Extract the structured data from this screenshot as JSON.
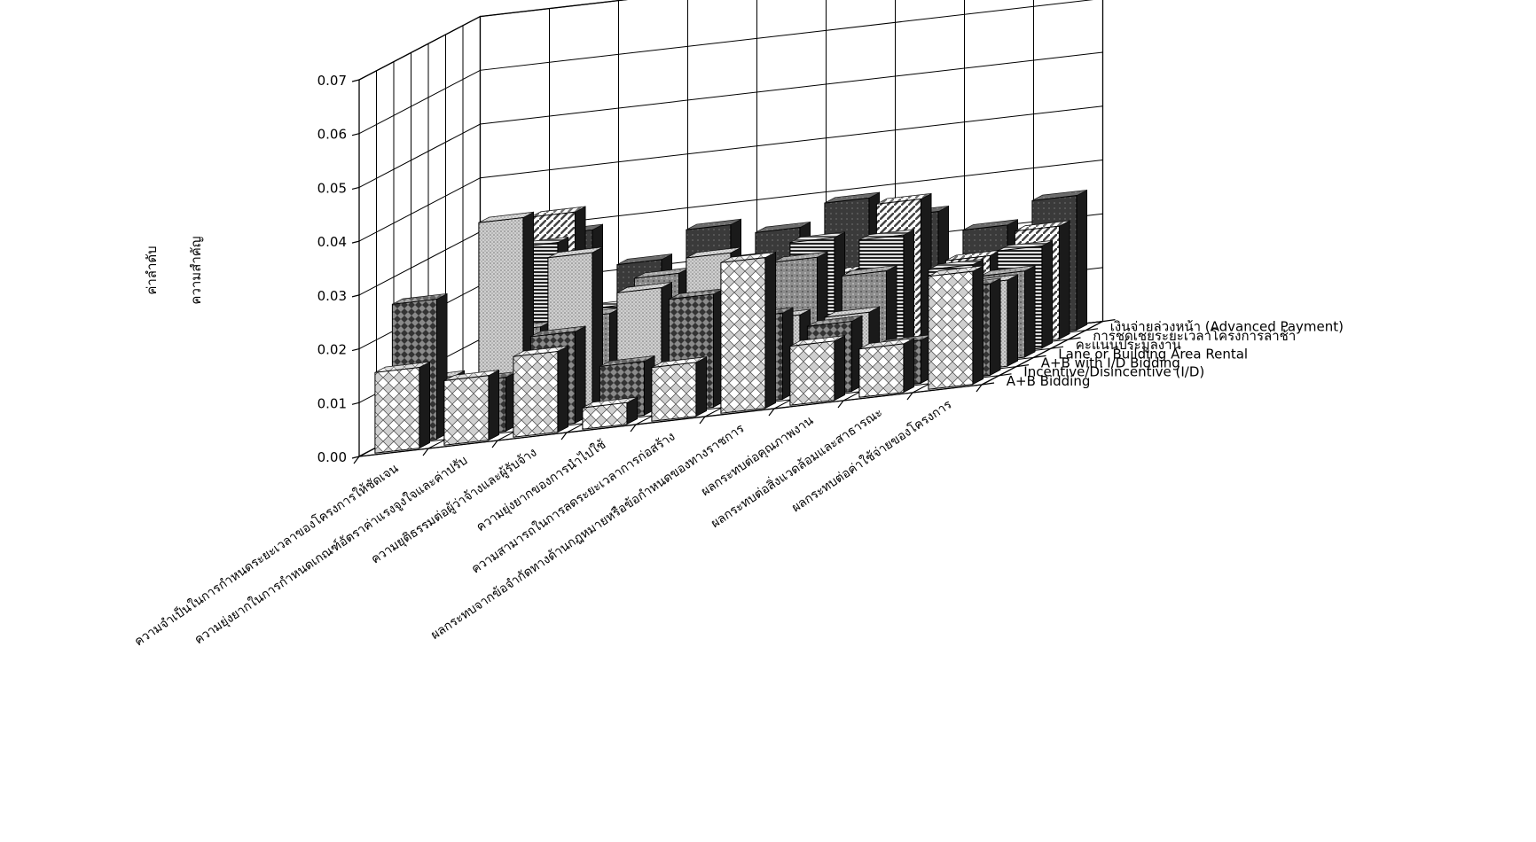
{
  "chart_data": {
    "type": "bar",
    "projection": "3d",
    "title": "",
    "ylabel": [
      "ค่าลำดับ",
      "ความสำคัญ"
    ],
    "ylim": [
      0,
      0.07
    ],
    "yticks": [
      "0.00",
      "0.01",
      "0.02",
      "0.03",
      "0.04",
      "0.05",
      "0.06",
      "0.07"
    ],
    "grid": true,
    "legend": "series labels along the right depth axis",
    "categories": [
      "ความจำเป็นในการกำหนดระยะเวลาของโครงการให้ชัดเจน",
      "ความยุ่งยากในการกำหนดเกณฑ์อัตราค่าแรงจูงใจและค่าปรับ",
      "ความยุติธรรมต่อผู้ว่าจ้างและผู้รับจ้าง",
      "ความยุ่งยากของการนำไปใช้",
      "ความสามารถในการลดระยะเวลาการก่อสร้าง",
      "ผลกระทบจากข้อจำกัดทางด้านกฎหมายหรือข้อกำหนดของทางราชการ",
      "ผลกระทบต่อคุณภาพงาน",
      "ผลกระทบต่อสิ่งแวดล้อมและสาธารณะ",
      "ผลกระทบต่อค่าใช้จ่ายของโครงการ"
    ],
    "series": [
      {
        "name": "A+B Bidding",
        "values": [
          0.015,
          0.012,
          0.015,
          0.004,
          0.01,
          0.028,
          0.011,
          0.009,
          0.021
        ]
      },
      {
        "name": "Incentive/Disincentive (I/D)",
        "values": [
          0.026,
          0.01,
          0.017,
          0.01,
          0.021,
          0.016,
          0.013,
          0.008,
          0.017
        ]
      },
      {
        "name": "A+B with I/D Bidding",
        "values": [
          0.01,
          0.038,
          0.03,
          0.022,
          0.027,
          0.014,
          0.013,
          0.002,
          0.016
        ]
      },
      {
        "name": "Lane or Building Area Rental",
        "values": [
          0.006,
          0.016,
          0.017,
          0.023,
          0.024,
          0.023,
          0.019,
          0.001,
          0.016
        ]
      },
      {
        "name": "คะแนนประมูลงาน",
        "values": [
          0.003,
          0.03,
          0.017,
          0.019,
          0.019,
          0.025,
          0.024,
          0.017,
          0.019
        ]
      },
      {
        "name": "การชดเชยระยะเวลาโครงการล่าช้า",
        "values": [
          0.003,
          0.034,
          0.015,
          0.015,
          0.015,
          0.017,
          0.029,
          0.017,
          0.021
        ]
      },
      {
        "name": "เงินจ่ายล่วงหน้า (Advanced Payment)",
        "values": [
          0.003,
          0.029,
          0.022,
          0.027,
          0.025,
          0.029,
          0.025,
          0.021,
          0.025
        ]
      }
    ]
  }
}
